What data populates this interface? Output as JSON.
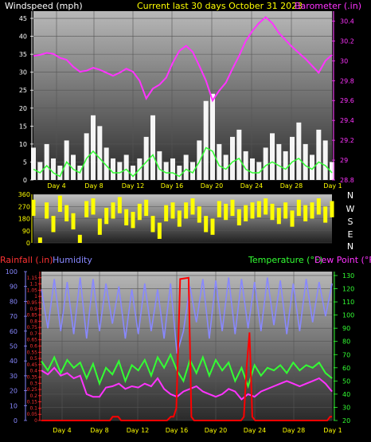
{
  "chart_data": [
    {
      "type": "line",
      "panel": "wind-barometer",
      "title": "Current last 30 days October 31 2023",
      "left_label": "Windspeed (mph)",
      "right_label": "Barometer (.in)",
      "x_ticks": [
        "Day 4",
        "Day 8",
        "Day 12",
        "Day 16",
        "Day 20",
        "Day 24",
        "Day 28",
        "Day 1"
      ],
      "left_ticks": [
        "0",
        "5",
        "10",
        "15",
        "20",
        "25",
        "30",
        "35",
        "40",
        "45"
      ],
      "right_ticks": [
        "28.8",
        "29",
        "29.2",
        "29.4",
        "29.6",
        "29.8",
        "30",
        "30.2",
        "30.4"
      ],
      "ylim_left": [
        0,
        47
      ],
      "ylim_right": [
        28.8,
        30.5
      ],
      "grid": true,
      "series": [
        {
          "color": "#ff33ff",
          "axis": "right",
          "values": [
            30.05,
            30.06,
            30.08,
            30.07,
            30.03,
            30.01,
            29.94,
            29.89,
            29.9,
            29.93,
            29.91,
            29.88,
            29.85,
            29.88,
            29.92,
            29.89,
            29.8,
            29.62,
            29.72,
            29.76,
            29.83,
            29.98,
            30.1,
            30.15,
            30.09,
            29.95,
            29.8,
            29.6,
            29.7,
            29.78,
            29.92,
            30.05,
            30.2,
            30.3,
            30.38,
            30.44,
            30.38,
            30.28,
            30.21,
            30.14,
            30.08,
            30.02,
            29.95,
            29.88,
            30.0,
            30.06
          ]
        },
        {
          "color": "#ffffff",
          "axis": "left",
          "values": [
            9,
            5,
            10,
            6,
            4,
            11,
            7,
            4,
            13,
            18,
            15,
            9,
            6,
            5,
            7,
            4,
            6,
            12,
            18,
            8,
            5,
            6,
            4,
            7,
            5,
            11,
            22,
            24,
            10,
            7,
            12,
            14,
            8,
            6,
            5,
            9,
            13,
            10,
            8,
            12,
            16,
            10,
            7,
            14,
            11,
            5
          ]
        },
        {
          "color": "#33ff33",
          "axis": "left",
          "values": [
            3,
            2,
            4,
            2,
            1,
            5,
            3,
            2,
            6,
            8,
            6,
            4,
            2,
            2,
            3,
            1,
            3,
            5,
            7,
            3,
            2,
            2,
            1,
            3,
            2,
            5,
            9,
            8,
            4,
            3,
            5,
            6,
            3,
            2,
            2,
            4,
            5,
            4,
            3,
            5,
            6,
            4,
            3,
            5,
            4,
            2
          ]
        }
      ]
    },
    {
      "type": "scatter",
      "panel": "wind-direction",
      "y_ticks": [
        "0",
        "90",
        "180",
        "270",
        "360"
      ],
      "compass_labels": [
        "N",
        "W",
        "S",
        "E",
        "N"
      ],
      "ylim": [
        0,
        360
      ],
      "series": [
        {
          "color": "#ffff00",
          "values": [
            320,
            40,
            300,
            200,
            350,
            280,
            220,
            60,
            310,
            330,
            180,
            260,
            300,
            340,
            250,
            230,
            290,
            320,
            200,
            150,
            280,
            300,
            240,
            300,
            330,
            270,
            200,
            180,
            310,
            290,
            320,
            250,
            280,
            300,
            310,
            330,
            290,
            260,
            300,
            240,
            320,
            280,
            300,
            330,
            270,
            310
          ]
        }
      ]
    },
    {
      "type": "line",
      "panel": "rain-humidity-temperature",
      "left_labels": [
        "Rainfall (.in)",
        "Humidity"
      ],
      "right_labels": [
        "Temperature (°F)",
        "Dew Point (°F)"
      ],
      "x_ticks": [
        "Day 4",
        "Day 8",
        "Day 12",
        "Day 16",
        "Day 20",
        "Day 24",
        "Day 28",
        "Day 1"
      ],
      "rain_ticks": [
        "0",
        "0.05",
        "0.1",
        "0.15",
        "0.2",
        "0.25",
        "0.3",
        "0.35",
        "0.4",
        "0.45",
        "0.5",
        "0.55",
        "0.6",
        "0.65",
        "0.7",
        "0.75",
        "0.8",
        "0.85",
        "0.9",
        "0.95",
        "1",
        "1.05",
        "1.1",
        "1.15"
      ],
      "humidity_ticks": [
        "0",
        "10",
        "20",
        "30",
        "40",
        "50",
        "60",
        "70",
        "80",
        "90",
        "100"
      ],
      "temp_ticks": [
        "20",
        "30",
        "40",
        "50",
        "60",
        "70",
        "80",
        "90",
        "100",
        "110",
        "120",
        "130"
      ],
      "ylim_rain": [
        0,
        1.2
      ],
      "ylim_humidity": [
        0,
        100
      ],
      "ylim_temp": [
        20,
        133
      ],
      "grid": true,
      "series": [
        {
          "color": "#8888ff",
          "axis": "humidity",
          "values": [
            88,
            62,
            95,
            60,
            93,
            58,
            96,
            55,
            95,
            60,
            92,
            65,
            90,
            55,
            88,
            58,
            92,
            60,
            88,
            55,
            92,
            45,
            60,
            90,
            66,
            95,
            55,
            94,
            60,
            96,
            58,
            95,
            62,
            93,
            60,
            96,
            64,
            94,
            58,
            92,
            60,
            95,
            66,
            93,
            70,
            92
          ]
        },
        {
          "color": "#33ff33",
          "axis": "temp",
          "values": [
            65,
            58,
            68,
            56,
            66,
            60,
            64,
            52,
            63,
            48,
            60,
            55,
            65,
            50,
            62,
            58,
            66,
            54,
            68,
            60,
            70,
            58,
            50,
            66,
            56,
            68,
            54,
            66,
            58,
            64,
            50,
            60,
            46,
            62,
            54,
            60,
            58,
            62,
            56,
            64,
            58,
            62,
            60,
            64,
            56,
            52
          ]
        },
        {
          "color": "#ff33ff",
          "axis": "temp",
          "values": [
            58,
            55,
            60,
            54,
            56,
            52,
            54,
            40,
            38,
            38,
            45,
            46,
            48,
            44,
            46,
            45,
            48,
            46,
            52,
            44,
            40,
            38,
            42,
            44,
            46,
            42,
            40,
            38,
            40,
            44,
            42,
            36,
            40,
            38,
            42,
            44,
            46,
            48,
            50,
            48,
            46,
            48,
            50,
            52,
            48,
            42
          ]
        },
        {
          "color": "#ff0000",
          "axis": "rain",
          "points": [
            [
              0,
              0
            ],
            [
              7.3,
              0
            ],
            [
              7.6,
              0.03
            ],
            [
              8.2,
              0.03
            ],
            [
              8.5,
              0
            ],
            [
              13.4,
              0
            ],
            [
              13.8,
              0.03
            ],
            [
              14.1,
              0.03
            ],
            [
              14.4,
              0.1
            ],
            [
              14.8,
              1.14
            ],
            [
              15.7,
              1.15
            ],
            [
              16.0,
              0.03
            ],
            [
              16.3,
              0
            ],
            [
              21.3,
              0
            ],
            [
              21.6,
              0.03
            ],
            [
              21.9,
              0.44
            ],
            [
              22.2,
              0.71
            ],
            [
              22.5,
              0.03
            ],
            [
              22.8,
              0
            ],
            [
              30.5,
              0
            ],
            [
              30.8,
              0.03
            ],
            [
              31,
              0.03
            ]
          ]
        }
      ]
    }
  ]
}
